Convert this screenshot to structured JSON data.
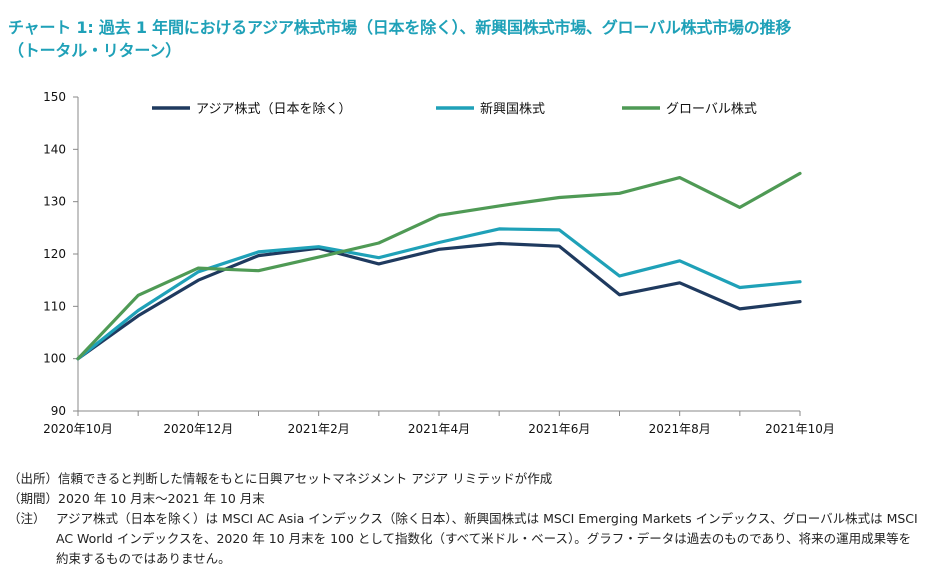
{
  "title_line1": "チャート 1: 過去 1 年間におけるアジア株式市場（日本を除く）、新興国株式市場、グローバル株式市場の推移",
  "title_line2": "（トータル・リターン）",
  "notes": {
    "source_tag": "（出所）",
    "source_text": "信頼できると判断した情報をもとに日興アセットマネジメント アジア リミテッドが作成",
    "period_tag": "（期間）",
    "period_text": "2020 年 10 月末～2021 年 10 月末",
    "note_tag": "（注）",
    "note_text": "アジア株式（日本を除く）は MSCI AC Asia インデックス（除く日本）、新興国株式は MSCI Emerging Markets インデックス、グローバル株式は MSCI AC World インデックスを、2020 年 10 月末を 100 として指数化（すべて米ドル・ベース）。グラフ・データは過去のものであり、将来の運用成果等を約束するものではありません。"
  },
  "colors": {
    "title": "#1fa1b8",
    "asia": "#1f3a5f",
    "em": "#1fa1b8",
    "global": "#4f9a55",
    "axis": "#888888"
  },
  "chart_data": {
    "type": "line",
    "x": [
      "2020年10月",
      "2020年11月",
      "2020年12月",
      "2021年1月",
      "2021年2月",
      "2021年3月",
      "2021年4月",
      "2021年5月",
      "2021年6月",
      "2021年7月",
      "2021年8月",
      "2021年9月",
      "2021年10月"
    ],
    "x_tick_labels": [
      "2020年10月",
      "2020年12月",
      "2021年2月",
      "2021年4月",
      "2021年6月",
      "2021年8月",
      "2021年10月"
    ],
    "ylim": [
      90,
      150
    ],
    "y_ticks": [
      90,
      100,
      110,
      120,
      130,
      140,
      150
    ],
    "legend_position": "top",
    "grid": false,
    "series": [
      {
        "name": "アジア株式（日本を除く）",
        "color": "#1f3a5f",
        "values": [
          100,
          108.2,
          115.0,
          119.7,
          121.1,
          118.1,
          120.9,
          122.0,
          121.5,
          112.2,
          114.5,
          109.5,
          110.9
        ]
      },
      {
        "name": "新興国株式",
        "color": "#1fa1b8",
        "values": [
          100,
          109.2,
          116.6,
          120.4,
          121.4,
          119.3,
          122.2,
          124.8,
          124.6,
          115.8,
          118.7,
          113.6,
          114.7
        ]
      },
      {
        "name": "グローバル株式",
        "color": "#4f9a55",
        "values": [
          100,
          112.1,
          117.3,
          116.8,
          119.4,
          122.1,
          127.4,
          129.2,
          130.8,
          131.6,
          134.6,
          128.9,
          135.4
        ]
      }
    ]
  }
}
